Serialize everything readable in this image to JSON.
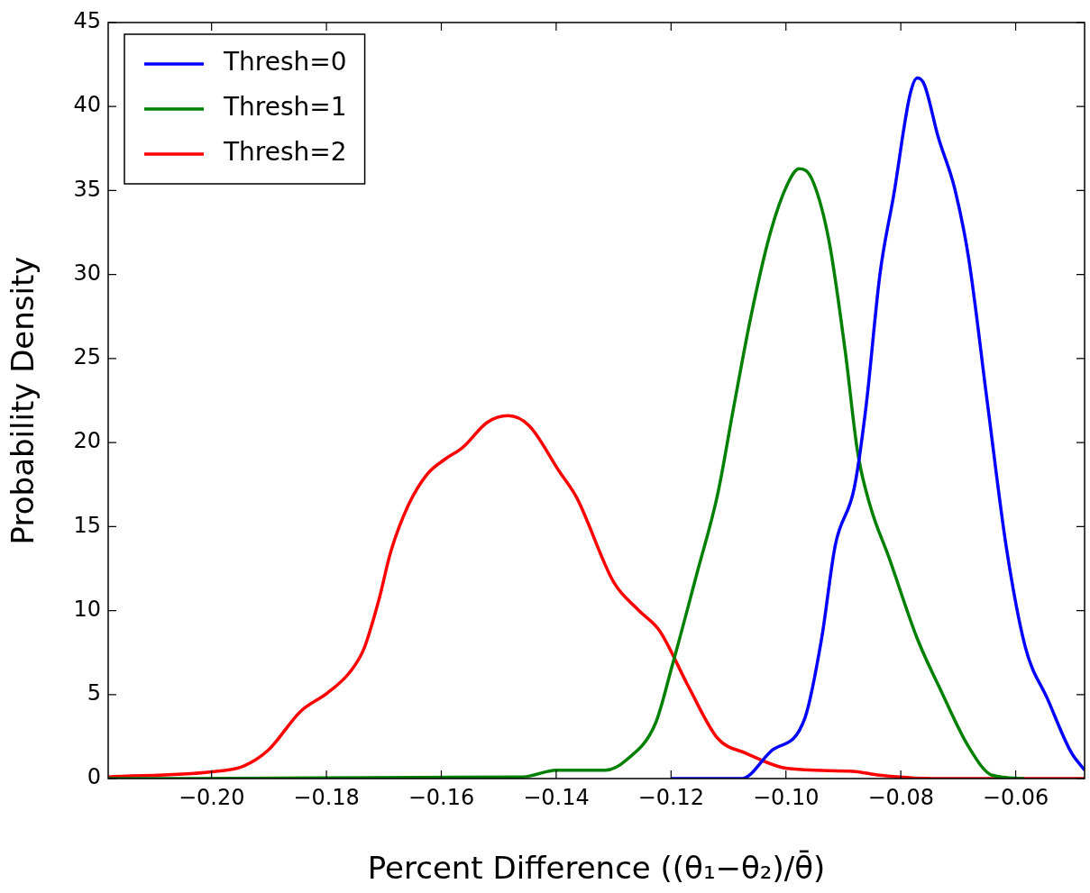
{
  "chart_data": {
    "type": "line",
    "xlabel": "Percent Difference ((θ₁−θ₂)/θ̄)",
    "ylabel": "Probability Density",
    "xlim": [
      -0.218,
      -0.048
    ],
    "ylim": [
      0,
      45
    ],
    "xticks": [
      {
        "value": -0.2,
        "label": "−0.20"
      },
      {
        "value": -0.18,
        "label": "−0.18"
      },
      {
        "value": -0.16,
        "label": "−0.16"
      },
      {
        "value": -0.14,
        "label": "−0.14"
      },
      {
        "value": -0.12,
        "label": "−0.12"
      },
      {
        "value": -0.1,
        "label": "−0.10"
      },
      {
        "value": -0.08,
        "label": "−0.08"
      },
      {
        "value": -0.06,
        "label": "−0.06"
      }
    ],
    "yticks": [
      0,
      5,
      10,
      15,
      20,
      25,
      30,
      35,
      40,
      45
    ],
    "grid": false,
    "legend": "top left",
    "marker": "none",
    "line_style": "solid",
    "series": [
      {
        "name": "Thresh=0",
        "color": "#0000ff",
        "x": [
          -0.12,
          -0.1077,
          -0.1027,
          -0.0967,
          -0.0938,
          -0.0914,
          -0.0881,
          -0.0861,
          -0.0836,
          -0.0812,
          -0.0784,
          -0.0771,
          -0.0759,
          -0.0735,
          -0.0706,
          -0.0682,
          -0.0649,
          -0.0616,
          -0.0583,
          -0.0544,
          -0.0504,
          -0.048
        ],
        "values": [
          0,
          0,
          1.6,
          3.6,
          8.3,
          13.9,
          17.3,
          22,
          30.1,
          34.8,
          40.7,
          41.7,
          41.3,
          38.2,
          35.1,
          31,
          22.3,
          13.7,
          7.8,
          4.7,
          1.6,
          0.5
        ]
      },
      {
        "name": "Thresh=1",
        "color": "#008000",
        "x": [
          -0.218,
          -0.1458,
          -0.14,
          -0.1314,
          -0.1278,
          -0.1227,
          -0.1199,
          -0.1155,
          -0.1119,
          -0.1091,
          -0.1061,
          -0.1027,
          -0.0997,
          -0.0977,
          -0.0955,
          -0.0925,
          -0.0897,
          -0.0875,
          -0.0853,
          -0.082,
          -0.0771,
          -0.0731,
          -0.0682,
          -0.0641,
          -0.0585
        ],
        "values": [
          0,
          0.1,
          0.5,
          0.5,
          1.1,
          3.3,
          6.6,
          12.2,
          16.9,
          22.1,
          27.5,
          32.5,
          35.4,
          36.3,
          35.7,
          32,
          25.5,
          19.4,
          16.2,
          13.1,
          8.3,
          5.3,
          1.9,
          0.2,
          0
        ]
      },
      {
        "name": "Thresh=2",
        "color": "#ff0000",
        "x": [
          -0.218,
          -0.2,
          -0.1944,
          -0.1901,
          -0.1845,
          -0.1798,
          -0.176,
          -0.1735,
          -0.1709,
          -0.1688,
          -0.1657,
          -0.1625,
          -0.1594,
          -0.1563,
          -0.152,
          -0.1484,
          -0.1447,
          -0.1395,
          -0.1364,
          -0.13,
          -0.1256,
          -0.122,
          -0.117,
          -0.1119,
          -0.1069,
          -0.0997,
          -0.0883,
          -0.0837,
          -0.0746,
          -0.048
        ],
        "values": [
          0.1,
          0.4,
          0.75,
          1.7,
          4.0,
          5.1,
          6.3,
          7.7,
          10.6,
          13.5,
          16.3,
          18.1,
          19.0,
          19.7,
          21.2,
          21.6,
          21.0,
          18.3,
          16.7,
          11.7,
          10.0,
          8.8,
          5.5,
          2.4,
          1.5,
          0.6,
          0.43,
          0.2,
          0,
          0
        ]
      }
    ]
  }
}
